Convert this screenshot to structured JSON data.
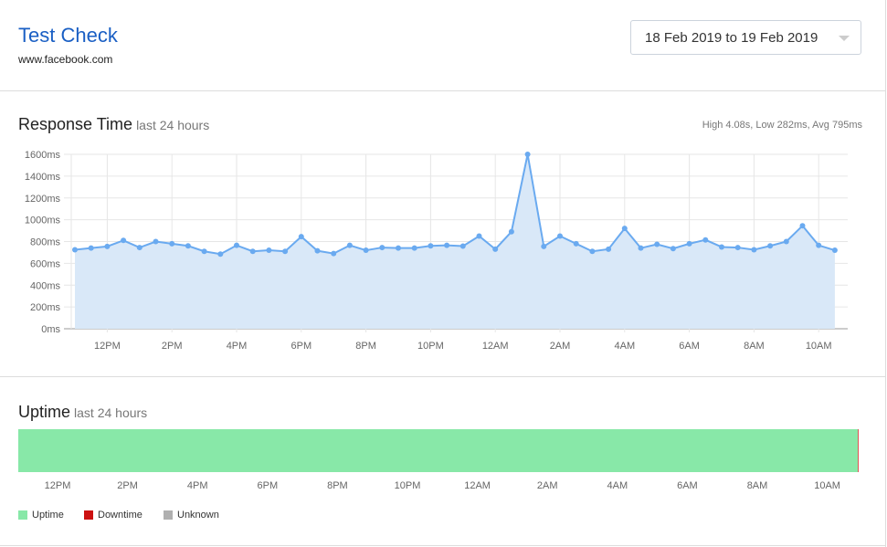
{
  "header": {
    "title": "Test Check",
    "url": "www.facebook.com",
    "date_range": "18 Feb 2019 to 19 Feb 2019"
  },
  "response": {
    "title": "Response Time",
    "subtitle": "last 24 hours",
    "stats": "High 4.08s, Low 282ms, Avg 795ms"
  },
  "uptime": {
    "title": "Uptime",
    "subtitle": "last 24 hours",
    "fraction_up": 0.999,
    "labels": [
      "12PM",
      "2PM",
      "4PM",
      "6PM",
      "8PM",
      "10PM",
      "12AM",
      "2AM",
      "4AM",
      "6AM",
      "8AM",
      "10AM"
    ],
    "legend": [
      {
        "label": "Uptime",
        "color": "#88e8a8"
      },
      {
        "label": "Downtime",
        "color": "#cc1111"
      },
      {
        "label": "Unknown",
        "color": "#b0b0b0"
      }
    ]
  },
  "chart_data": {
    "type": "area",
    "title": "Response Time",
    "ylabel": "ms",
    "ylim": [
      0,
      1600
    ],
    "yticks": [
      "0ms",
      "200ms",
      "400ms",
      "600ms",
      "800ms",
      "1000ms",
      "1200ms",
      "1400ms",
      "1600ms"
    ],
    "xticks": [
      "12PM",
      "2PM",
      "4PM",
      "6PM",
      "8PM",
      "10PM",
      "12AM",
      "2AM",
      "4AM",
      "6AM",
      "8AM",
      "10AM"
    ],
    "x_start": "11AM",
    "interval_minutes": 30,
    "values": [
      725,
      740,
      755,
      810,
      745,
      800,
      780,
      760,
      710,
      685,
      765,
      710,
      720,
      710,
      845,
      715,
      690,
      765,
      720,
      745,
      740,
      740,
      760,
      765,
      758,
      850,
      730,
      890,
      1600,
      755,
      850,
      780,
      710,
      730,
      920,
      740,
      775,
      735,
      780,
      815,
      750,
      745,
      725,
      760,
      800,
      945,
      765,
      720
    ],
    "color": "#6aaaf0",
    "fill": "#d9e8f8"
  }
}
